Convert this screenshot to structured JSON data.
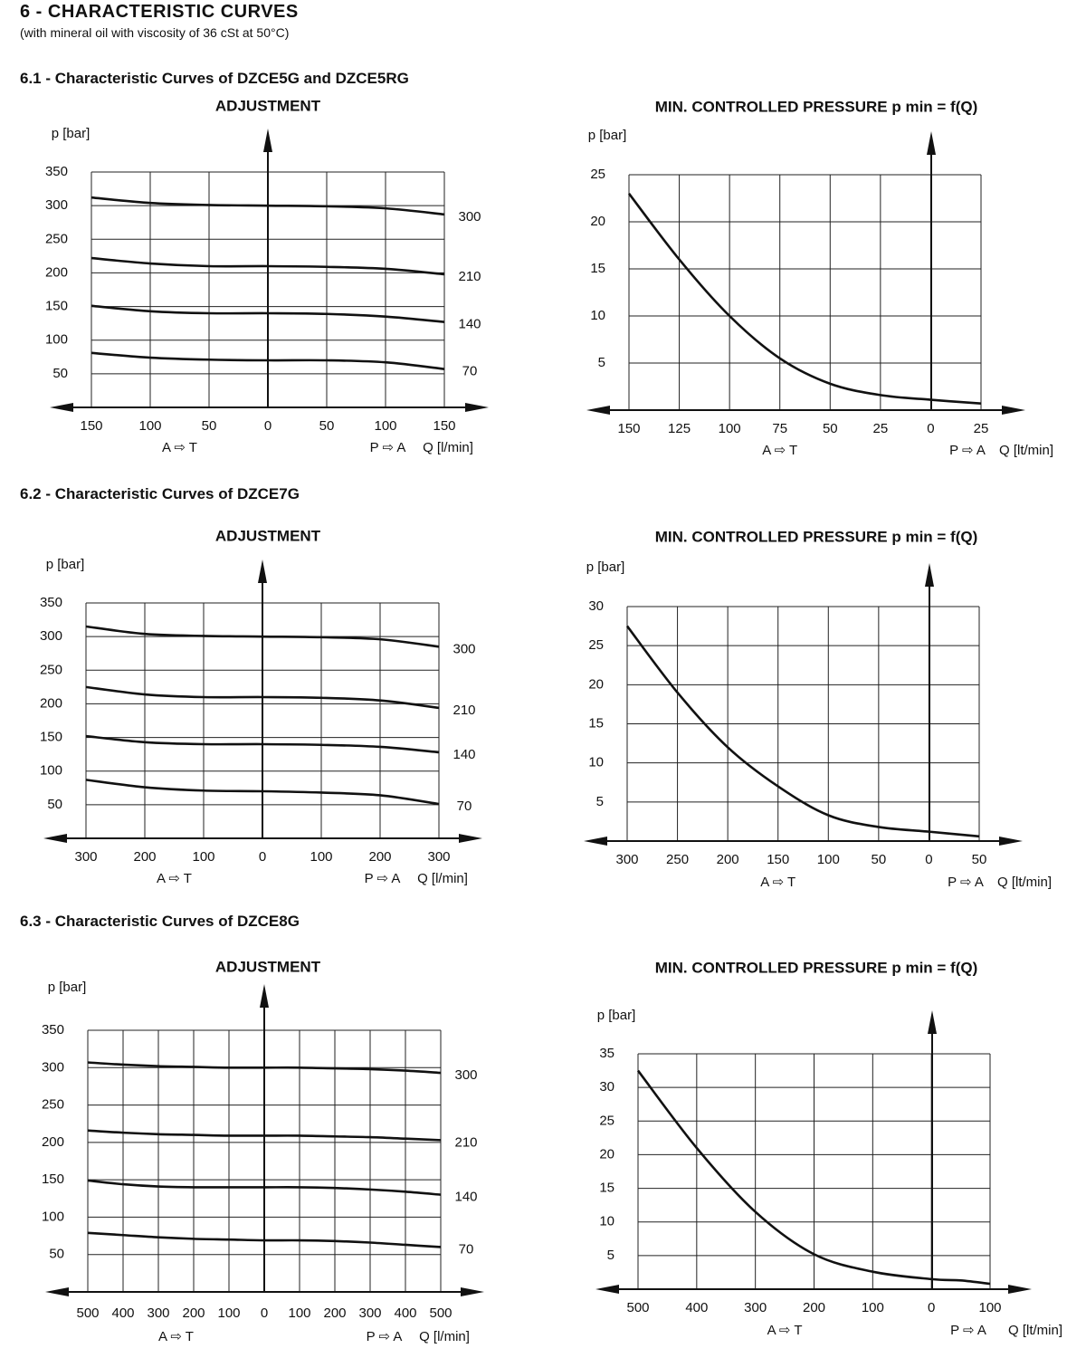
{
  "page": {
    "title": "6 - CHARACTERISTIC CURVES",
    "subtitle": "(with mineral oil with viscosity of 36 cSt at 50°C)"
  },
  "sections": [
    {
      "heading": "6.1 - Characteristic Curves of DZCE5G and DZCE5RG"
    },
    {
      "heading": "6.2 - Characteristic Curves of DZCE7G"
    },
    {
      "heading": "6.3 - Characteristic Curves of DZCE8G"
    }
  ],
  "chart_data": [
    {
      "type": "line",
      "title": "ADJUSTMENT",
      "ylabel": "p [bar]",
      "xlabel": "Q [l/min]",
      "left_flow_label": "A ⇨ T",
      "right_flow_label": "P ⇨ A",
      "x_tick_labels": [
        "150",
        "100",
        "50",
        "0",
        "50",
        "100",
        "150"
      ],
      "y_tick_labels": [
        "350",
        "300",
        "250",
        "200",
        "150",
        "100",
        "50"
      ],
      "x": [
        -150,
        -100,
        -50,
        0,
        50,
        100,
        150
      ],
      "xlim": [
        -150,
        150
      ],
      "ylim": [
        0,
        350
      ],
      "grid": true,
      "series": [
        {
          "name": "300",
          "values": [
            312,
            304,
            301,
            300,
            299,
            296,
            287
          ]
        },
        {
          "name": "210",
          "values": [
            222,
            214,
            210,
            210,
            209,
            206,
            198
          ]
        },
        {
          "name": "140",
          "values": [
            151,
            143,
            140,
            140,
            139,
            135,
            127
          ]
        },
        {
          "name": "70",
          "values": [
            81,
            74,
            71,
            70,
            70,
            67,
            57
          ]
        }
      ]
    },
    {
      "type": "line",
      "title": "MIN. CONTROLLED PRESSURE  p min = f(Q)",
      "ylabel": "p [bar]",
      "xlabel": "Q [lt/min]",
      "left_flow_label": "A ⇨ T",
      "right_flow_label": "P ⇨ A",
      "x_tick_labels": [
        "150",
        "125",
        "100",
        "75",
        "50",
        "25",
        "0",
        "25"
      ],
      "y_tick_labels": [
        "25",
        "20",
        "15",
        "10",
        "5"
      ],
      "x": [
        -150,
        -125,
        -100,
        -75,
        -50,
        -25,
        0,
        25
      ],
      "xlim": [
        -150,
        25
      ],
      "ylim": [
        0,
        25
      ],
      "grid": true,
      "series": [
        {
          "values": [
            23,
            16,
            10,
            5.5,
            2.8,
            1.6,
            1.1,
            0.7
          ]
        }
      ]
    },
    {
      "type": "line",
      "title": "ADJUSTMENT",
      "ylabel": "p [bar]",
      "xlabel": "Q [l/min]",
      "left_flow_label": "A ⇨ T",
      "right_flow_label": "P ⇨ A",
      "x_tick_labels": [
        "300",
        "200",
        "100",
        "0",
        "100",
        "200",
        "300"
      ],
      "y_tick_labels": [
        "350",
        "300",
        "250",
        "200",
        "150",
        "100",
        "50"
      ],
      "x": [
        -300,
        -200,
        -100,
        0,
        100,
        200,
        300
      ],
      "xlim": [
        -300,
        300
      ],
      "ylim": [
        0,
        350
      ],
      "grid": true,
      "series": [
        {
          "name": "300",
          "values": [
            315,
            304,
            301,
            300,
            299,
            296,
            285
          ]
        },
        {
          "name": "210",
          "values": [
            225,
            214,
            210,
            210,
            209,
            205,
            194
          ]
        },
        {
          "name": "140",
          "values": [
            152,
            143,
            140,
            140,
            139,
            136,
            128
          ]
        },
        {
          "name": "70",
          "values": [
            87,
            76,
            71,
            70,
            68,
            64,
            51
          ]
        }
      ]
    },
    {
      "type": "line",
      "title": "MIN. CONTROLLED PRESSURE  p min = f(Q)",
      "ylabel": "p [bar]",
      "xlabel": "Q [lt/min]",
      "left_flow_label": "A ⇨ T",
      "right_flow_label": "P ⇨ A",
      "x_tick_labels": [
        "300",
        "250",
        "200",
        "150",
        "100",
        "50",
        "0",
        "50"
      ],
      "y_tick_labels": [
        "30",
        "25",
        "20",
        "15",
        "10",
        "5"
      ],
      "x": [
        -300,
        -250,
        -200,
        -150,
        -100,
        -50,
        0,
        50
      ],
      "xlim": [
        -300,
        50
      ],
      "ylim": [
        0,
        30
      ],
      "grid": true,
      "series": [
        {
          "values": [
            27.5,
            19,
            12,
            7,
            3.3,
            1.8,
            1.2,
            0.6
          ]
        }
      ]
    },
    {
      "type": "line",
      "title": "ADJUSTMENT",
      "ylabel": "p [bar]",
      "xlabel": "Q [l/min]",
      "left_flow_label": "A ⇨ T",
      "right_flow_label": "P ⇨ A",
      "x_tick_labels": [
        "500",
        "400",
        "300",
        "200",
        "100",
        "0",
        "100",
        "200",
        "300",
        "400",
        "500"
      ],
      "y_tick_labels": [
        "350",
        "300",
        "250",
        "200",
        "150",
        "100",
        "50"
      ],
      "x": [
        -500,
        -400,
        -300,
        -200,
        -100,
        0,
        100,
        200,
        300,
        400,
        500
      ],
      "xlim": [
        -500,
        500
      ],
      "ylim": [
        0,
        350
      ],
      "grid": true,
      "series": [
        {
          "name": "300",
          "values": [
            307,
            304,
            302,
            301,
            300,
            300,
            300,
            299,
            298,
            296,
            293
          ]
        },
        {
          "name": "210",
          "values": [
            216,
            213,
            211,
            210,
            209,
            209,
            209,
            208,
            207,
            205,
            203
          ]
        },
        {
          "name": "140",
          "values": [
            149,
            144,
            141,
            140,
            140,
            140,
            140,
            139,
            137,
            134,
            130
          ]
        },
        {
          "name": "70",
          "values": [
            79,
            76,
            73,
            71,
            70,
            69,
            69,
            68,
            66,
            63,
            60
          ]
        }
      ]
    },
    {
      "type": "line",
      "title": "MIN. CONTROLLED PRESSURE  p min = f(Q)",
      "ylabel": "p [bar]",
      "xlabel": "Q [lt/min]",
      "left_flow_label": "A ⇨ T",
      "right_flow_label": "P ⇨ A",
      "x_tick_labels": [
        "500",
        "400",
        "300",
        "200",
        "100",
        "0",
        "100"
      ],
      "y_tick_labels": [
        "35",
        "30",
        "25",
        "20",
        "15",
        "10",
        "5"
      ],
      "x": [
        -500,
        -400,
        -300,
        -200,
        -100,
        0,
        50,
        100
      ],
      "xlim": [
        -500,
        100
      ],
      "ylim": [
        0,
        35
      ],
      "grid": true,
      "series": [
        {
          "values": [
            32.5,
            21,
            11.5,
            5.2,
            2.6,
            1.5,
            1.3,
            0.8
          ]
        }
      ]
    }
  ]
}
